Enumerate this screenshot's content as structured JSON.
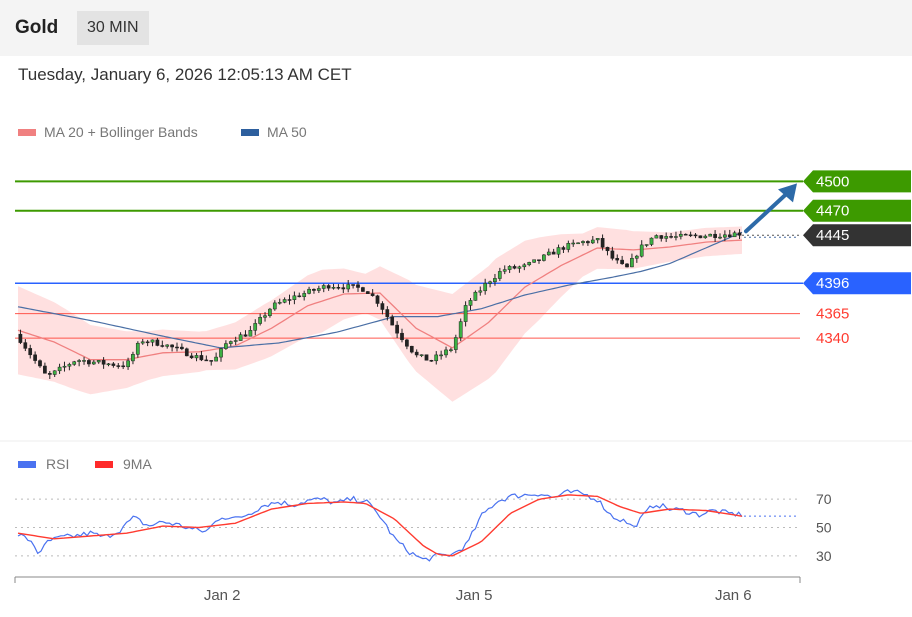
{
  "header": {
    "title": "Gold",
    "timeframe": "30 MIN",
    "timestamp": "Tuesday, January 6, 2026 12:05:13 AM CET"
  },
  "colors": {
    "green": "#3d9a00",
    "blue": "#2962ff",
    "red": "#ff3b30",
    "dark": "#333333",
    "bollinger": "#ffd6d6",
    "ma20": "#f08080",
    "ma50": "#4a6fa5",
    "arrow": "#2d6aa8",
    "rsi": "#4a72f0",
    "rsi_ma": "#ff3b30"
  },
  "chart_data": [
    {
      "type": "candlestick",
      "legend": [
        {
          "name": "MA 20 + Bollinger Bands",
          "color": "#f08080"
        },
        {
          "name": "MA 50",
          "color": "#4a6fa5"
        }
      ],
      "ylim": [
        4236,
        4532
      ],
      "xlim": [
        0,
        100
      ],
      "x_ticks": [
        {
          "label": "Jan 2",
          "x": 28.2
        },
        {
          "label": "Jan 5",
          "x": 63
        },
        {
          "label": "Jan 6",
          "x": 98.8
        }
      ],
      "levels": [
        {
          "value": 4500,
          "label": "4500",
          "style": "resistance"
        },
        {
          "value": 4470,
          "label": "4470",
          "style": "resistance"
        },
        {
          "value": 4445,
          "label": "4445",
          "style": "current"
        },
        {
          "value": 4396,
          "label": "4396",
          "style": "pivot"
        },
        {
          "value": 4365,
          "label": "4365",
          "style": "support"
        },
        {
          "value": 4340,
          "label": "4340",
          "style": "support"
        }
      ],
      "arrow": {
        "from": 4447,
        "to": 4500
      },
      "close_anchors": [
        [
          0,
          4342
        ],
        [
          3,
          4310
        ],
        [
          4,
          4300
        ],
        [
          8,
          4318
        ],
        [
          12,
          4314
        ],
        [
          15,
          4312
        ],
        [
          17,
          4338
        ],
        [
          20,
          4334
        ],
        [
          25,
          4320
        ],
        [
          27,
          4316
        ],
        [
          29,
          4337
        ],
        [
          32,
          4346
        ],
        [
          35,
          4372
        ],
        [
          38,
          4382
        ],
        [
          43,
          4394
        ],
        [
          46,
          4392
        ],
        [
          48,
          4390
        ],
        [
          50,
          4375
        ],
        [
          52,
          4350
        ],
        [
          55,
          4322
        ],
        [
          57,
          4317
        ],
        [
          60,
          4330
        ],
        [
          62,
          4375
        ],
        [
          65,
          4398
        ],
        [
          67,
          4410
        ],
        [
          70,
          4413
        ],
        [
          72,
          4420
        ],
        [
          75,
          4432
        ],
        [
          78,
          4438
        ],
        [
          80,
          4440
        ],
        [
          82,
          4422
        ],
        [
          84,
          4410
        ],
        [
          86,
          4432
        ],
        [
          88,
          4445
        ],
        [
          91,
          4443
        ],
        [
          95,
          4445
        ],
        [
          100,
          4447
        ]
      ],
      "ma20_anchors": [
        [
          0,
          4348
        ],
        [
          5,
          4336
        ],
        [
          10,
          4318
        ],
        [
          15,
          4318
        ],
        [
          20,
          4325
        ],
        [
          25,
          4326
        ],
        [
          30,
          4332
        ],
        [
          35,
          4350
        ],
        [
          40,
          4373
        ],
        [
          45,
          4385
        ],
        [
          50,
          4386
        ],
        [
          55,
          4350
        ],
        [
          60,
          4330
        ],
        [
          65,
          4356
        ],
        [
          70,
          4392
        ],
        [
          75,
          4414
        ],
        [
          80,
          4432
        ],
        [
          85,
          4430
        ],
        [
          90,
          4433
        ],
        [
          95,
          4438
        ],
        [
          100,
          4440
        ]
      ],
      "ma50_anchors": [
        [
          0,
          4372
        ],
        [
          10,
          4358
        ],
        [
          20,
          4342
        ],
        [
          28,
          4330
        ],
        [
          36,
          4335
        ],
        [
          44,
          4346
        ],
        [
          52,
          4362
        ],
        [
          58,
          4362
        ],
        [
          64,
          4370
        ],
        [
          70,
          4384
        ],
        [
          76,
          4394
        ],
        [
          82,
          4402
        ],
        [
          86,
          4408
        ],
        [
          90,
          4416
        ],
        [
          95,
          4432
        ],
        [
          100,
          4448
        ]
      ],
      "band_width_anchors": [
        [
          0,
          45
        ],
        [
          8,
          38
        ],
        [
          18,
          25
        ],
        [
          26,
          20
        ],
        [
          34,
          28
        ],
        [
          42,
          32
        ],
        [
          48,
          20
        ],
        [
          54,
          42
        ],
        [
          60,
          55
        ],
        [
          66,
          58
        ],
        [
          72,
          42
        ],
        [
          78,
          22
        ],
        [
          84,
          20
        ],
        [
          90,
          15
        ],
        [
          100,
          14
        ]
      ]
    },
    {
      "type": "line",
      "legend": [
        {
          "name": "RSI",
          "color": "#4a72f0"
        },
        {
          "name": "9MA",
          "color": "#ff3b30"
        }
      ],
      "ylim": [
        20,
        80
      ],
      "y_ticks": [
        70,
        50,
        30
      ],
      "rsi_anchors": [
        [
          0,
          45
        ],
        [
          2,
          40
        ],
        [
          3,
          30
        ],
        [
          4,
          40
        ],
        [
          6,
          43
        ],
        [
          8,
          44
        ],
        [
          10,
          46
        ],
        [
          12,
          43
        ],
        [
          14,
          48
        ],
        [
          16,
          57
        ],
        [
          18,
          51
        ],
        [
          20,
          54
        ],
        [
          22,
          52
        ],
        [
          24,
          49
        ],
        [
          26,
          47
        ],
        [
          28,
          58
        ],
        [
          30,
          56
        ],
        [
          32,
          60
        ],
        [
          34,
          66
        ],
        [
          36,
          68
        ],
        [
          38,
          66
        ],
        [
          40,
          69
        ],
        [
          42,
          70
        ],
        [
          44,
          67
        ],
        [
          46,
          70
        ],
        [
          48,
          69
        ],
        [
          50,
          58
        ],
        [
          52,
          42
        ],
        [
          54,
          33
        ],
        [
          56,
          27
        ],
        [
          58,
          30
        ],
        [
          60,
          31
        ],
        [
          62,
          38
        ],
        [
          64,
          58
        ],
        [
          66,
          68
        ],
        [
          68,
          72
        ],
        [
          70,
          73
        ],
        [
          72,
          74
        ],
        [
          74,
          71
        ],
        [
          76,
          75
        ],
        [
          78,
          74
        ],
        [
          80,
          70
        ],
        [
          82,
          58
        ],
        [
          84,
          54
        ],
        [
          85,
          50
        ],
        [
          87,
          62
        ],
        [
          88,
          67
        ],
        [
          90,
          63
        ],
        [
          92,
          62
        ],
        [
          94,
          59
        ],
        [
          96,
          62
        ],
        [
          98,
          60
        ],
        [
          100,
          59
        ]
      ],
      "ma_anchors": [
        [
          0,
          46
        ],
        [
          5,
          42
        ],
        [
          10,
          44
        ],
        [
          15,
          46
        ],
        [
          20,
          51
        ],
        [
          25,
          50
        ],
        [
          30,
          53
        ],
        [
          35,
          63
        ],
        [
          40,
          67
        ],
        [
          45,
          68
        ],
        [
          48,
          67
        ],
        [
          52,
          56
        ],
        [
          56,
          37
        ],
        [
          58,
          31
        ],
        [
          60,
          30
        ],
        [
          64,
          40
        ],
        [
          68,
          60
        ],
        [
          72,
          70
        ],
        [
          76,
          73
        ],
        [
          80,
          72
        ],
        [
          83,
          65
        ],
        [
          86,
          60
        ],
        [
          90,
          63
        ],
        [
          95,
          62
        ],
        [
          100,
          58
        ]
      ]
    }
  ]
}
